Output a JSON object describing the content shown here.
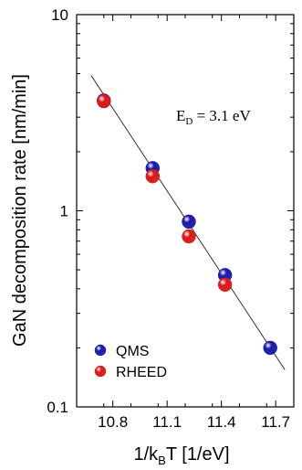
{
  "chart_data": {
    "type": "scatter",
    "xlabel_parts": {
      "pre": "1/k",
      "sub": "B",
      "post": "T [1/eV]"
    },
    "ylabel": "GaN decomposition rate [nm/min]",
    "xlim": [
      10.6,
      11.8
    ],
    "ylim": [
      0.1,
      10
    ],
    "yscale": "log",
    "xticks": [
      10.8,
      11.1,
      11.4,
      11.7
    ],
    "xtick_labels": [
      "10.8",
      "11.1",
      "11.4",
      "11.7"
    ],
    "yticks": [
      0.1,
      1,
      10
    ],
    "ytick_labels": [
      "0.1",
      "1",
      "10"
    ],
    "grid": false,
    "legend_position": "bottom-left",
    "annotation": {
      "pre": "E",
      "sub": "D",
      "post": " = 3.1 eV"
    },
    "series": [
      {
        "name": "QMS",
        "color": "#1a1aa8",
        "points": [
          {
            "x": 10.75,
            "y": 3.65
          },
          {
            "x": 11.02,
            "y": 1.65
          },
          {
            "x": 11.22,
            "y": 0.88
          },
          {
            "x": 11.42,
            "y": 0.47
          },
          {
            "x": 11.67,
            "y": 0.2
          }
        ]
      },
      {
        "name": "RHEED",
        "color": "#d81a1a",
        "points": [
          {
            "x": 10.75,
            "y": 3.62
          },
          {
            "x": 11.02,
            "y": 1.5
          },
          {
            "x": 11.22,
            "y": 0.74
          },
          {
            "x": 11.42,
            "y": 0.42
          }
        ]
      }
    ],
    "fit_line": {
      "x": [
        10.68,
        11.75
      ],
      "y": [
        4.9,
        0.155
      ]
    }
  }
}
